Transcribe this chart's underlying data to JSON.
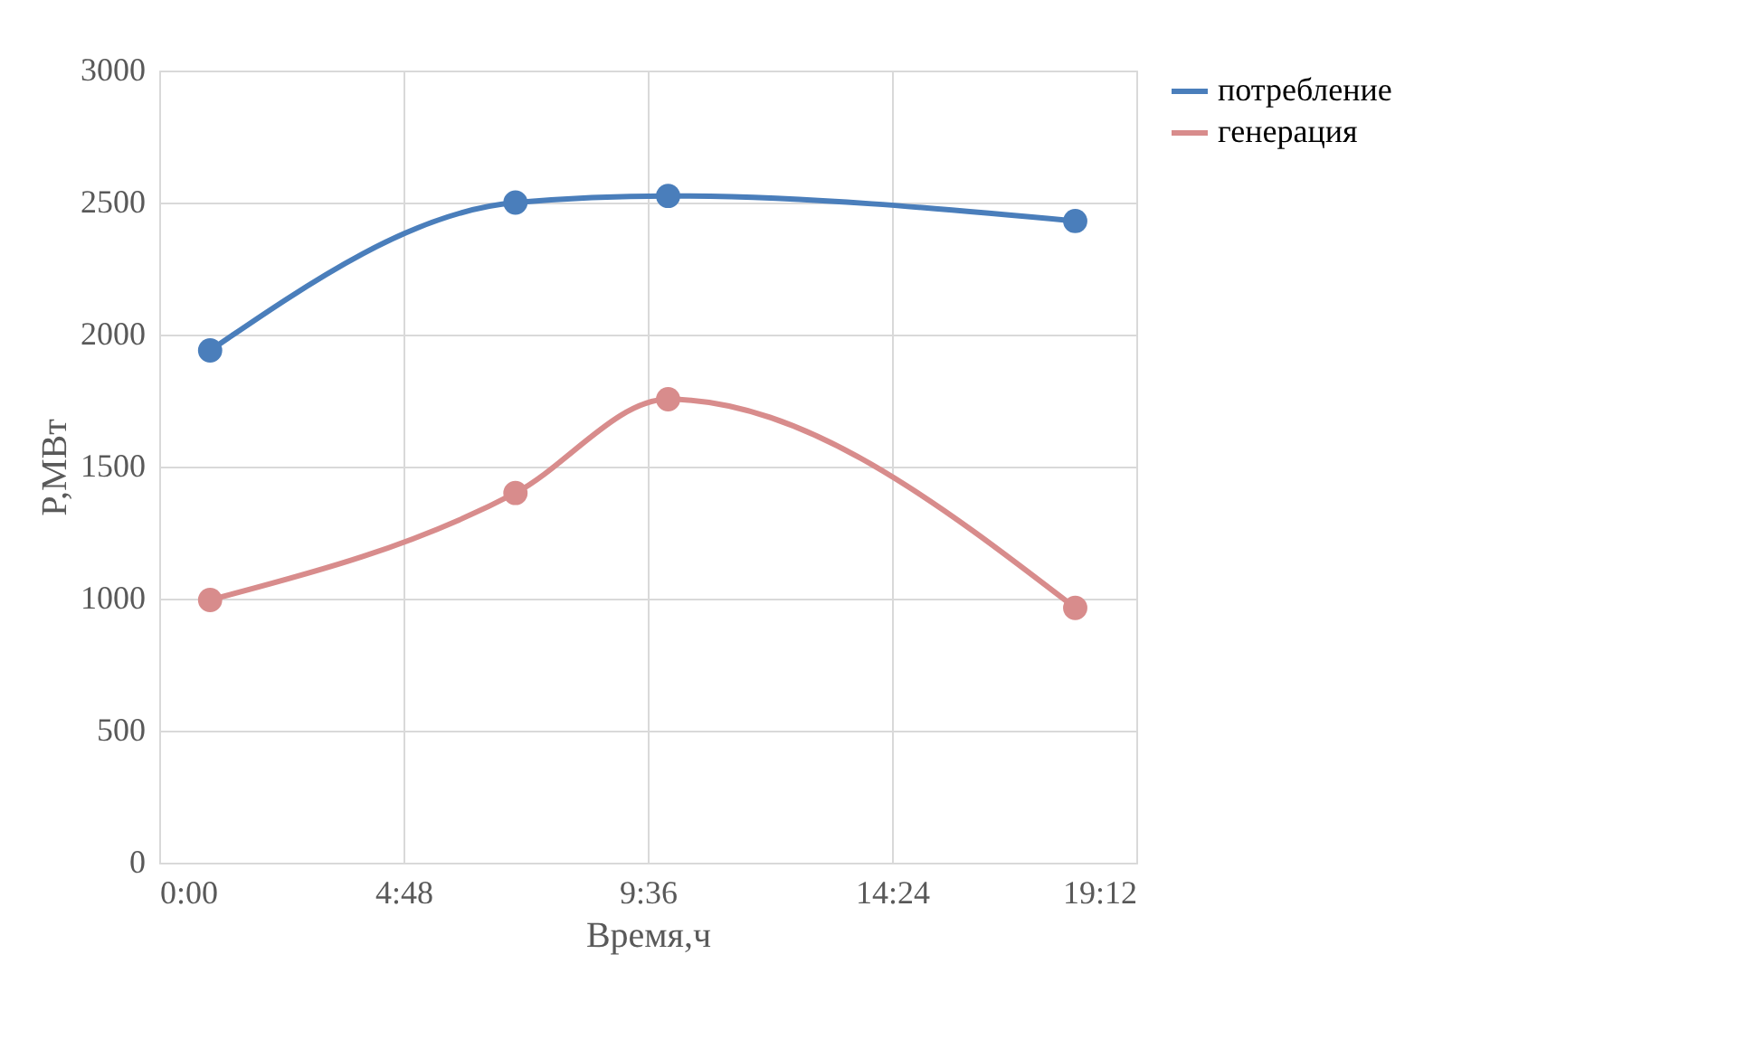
{
  "chart_data": {
    "type": "line",
    "xlabel": "Время,ч",
    "ylabel": "P,МВт",
    "x": [
      1,
      7,
      10,
      18
    ],
    "series": [
      {
        "name": "потребление",
        "color": "#4a7ebb",
        "values": [
          1940,
          2500,
          2525,
          2430
        ]
      },
      {
        "name": "генерация",
        "color": "#d88c8c",
        "values": [
          995,
          1400,
          1755,
          965
        ]
      }
    ],
    "xlim": [
      0,
      19.2
    ],
    "xticks": [
      {
        "value": 0,
        "label": "0:00"
      },
      {
        "value": 4.8,
        "label": "4:48"
      },
      {
        "value": 9.6,
        "label": "9:36"
      },
      {
        "value": 14.4,
        "label": "14:24"
      },
      {
        "value": 19.2,
        "label": "19:12"
      }
    ],
    "ylim": [
      0,
      3000
    ],
    "yticks": [
      0,
      500,
      1000,
      1500,
      2000,
      2500,
      3000
    ],
    "grid": true,
    "legend": "right",
    "marker": "circle",
    "line_style": "solid"
  }
}
